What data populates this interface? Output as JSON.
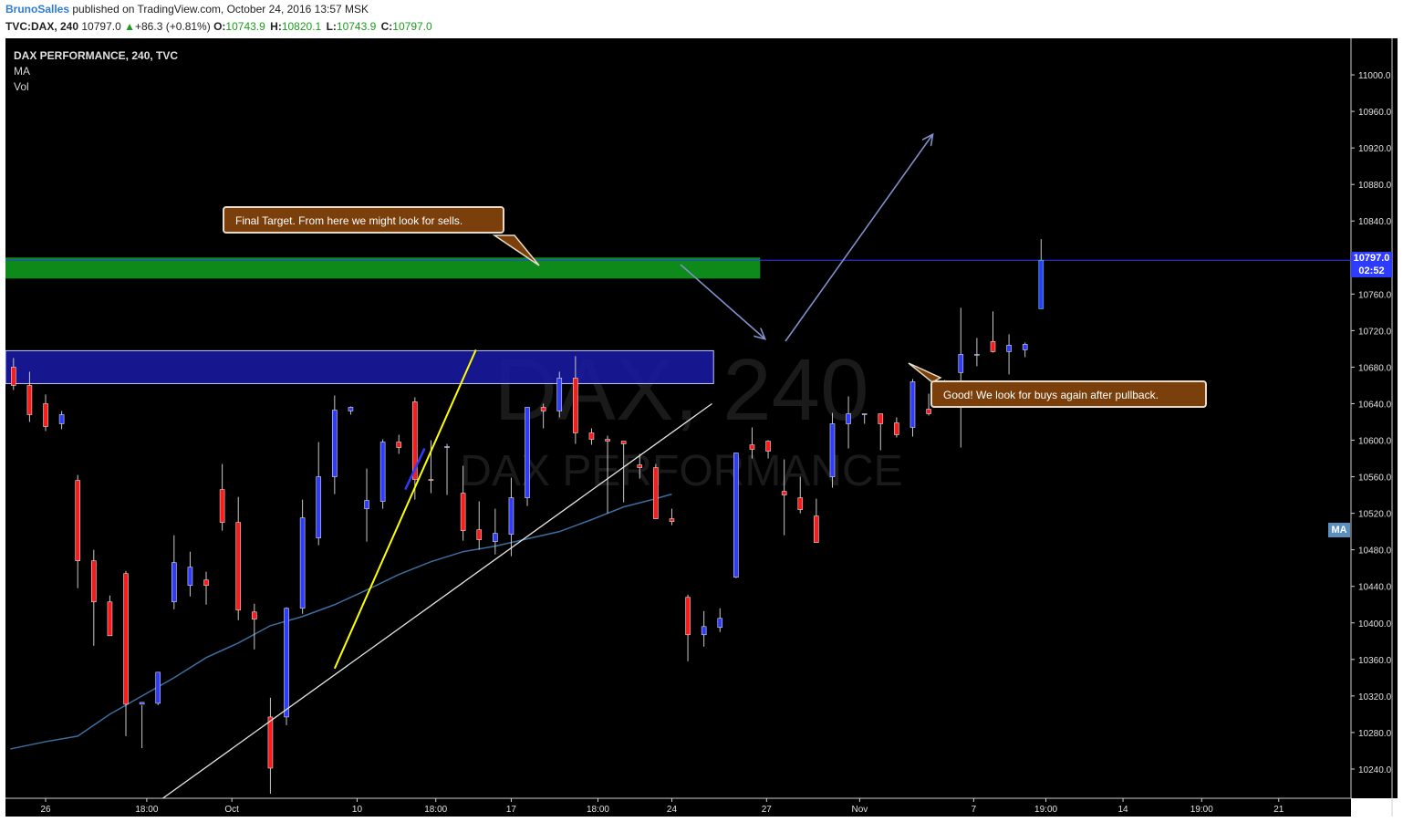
{
  "header": {
    "author": "BrunoSalles",
    "published_text": " published on TradingView.com, October 24, 2016 13:57 MSK",
    "symbol": "TVC:DAX, 240",
    "last": "10797.0",
    "change": "+86.3 (+0.81%)",
    "open_label": "O:",
    "open": "10743.9",
    "high_label": "H:",
    "high": "10820.1",
    "low_label": "L:",
    "low": "10743.9",
    "close_label": "C:",
    "close": "10797.0"
  },
  "legend": {
    "title": "DAX PERFORMANCE, 240, TVC",
    "indicator_1": "MA",
    "indicator_2": "Vol"
  },
  "watermark": {
    "line1": "DAX, 240",
    "line2": "DAX PERFORMANCE"
  },
  "annotations": {
    "callout_top": "Final Target. From here we might look for sells.",
    "callout_bottom": "Good! We look for buys again after pullback."
  },
  "price_tags": {
    "last_price": "10797.0",
    "countdown": "02:52",
    "ma": "MA"
  },
  "colors": {
    "background": "#000000",
    "up_candle": "#2e3cff",
    "down_candle": "#ff1a1a",
    "ma_line": "#3b6e9e",
    "resistance_zone": "#0e8a1a",
    "support_zone": "#1a1aa8",
    "trendline_yellow": "#ffff00",
    "trendline_white": "#e8e8e8",
    "arrow": "#8090c8"
  },
  "chart_data": {
    "type": "candlestick",
    "title": "DAX PERFORMANCE, 240, TVC",
    "y_ticks": [
      11000,
      10960,
      10920,
      10880,
      10840,
      10760,
      10720,
      10680,
      10640,
      10600,
      10560,
      10520,
      10480,
      10440,
      10400,
      10360,
      10320,
      10280,
      10240
    ],
    "ylim": [
      10208,
      11040
    ],
    "x_ticks": [
      {
        "label": "26",
        "i": 2
      },
      {
        "label": "18:00",
        "i": 8.3
      },
      {
        "label": "Oct",
        "i": 13.6
      },
      {
        "label": "10",
        "i": 21.4
      },
      {
        "label": "18:00",
        "i": 26.3
      },
      {
        "label": "17",
        "i": 31
      },
      {
        "label": "18:00",
        "i": 36.4
      },
      {
        "label": "24",
        "i": 41
      },
      {
        "label": "27",
        "i": 46.9
      },
      {
        "label": "Nov",
        "i": 52.7
      },
      {
        "label": "7",
        "i": 59.8
      },
      {
        "label": "19:00",
        "i": 64.3
      },
      {
        "label": "14",
        "i": 69.1
      },
      {
        "label": "19:00",
        "i": 74
      },
      {
        "label": "21",
        "i": 78.8
      }
    ],
    "x_range": [
      -0.5,
      83.3
    ],
    "candles": [
      {
        "o": 10680,
        "h": 10690,
        "l": 10655,
        "c": 10660
      },
      {
        "o": 10660,
        "h": 10675,
        "l": 10620,
        "c": 10628
      },
      {
        "o": 10640,
        "h": 10650,
        "l": 10610,
        "c": 10615
      },
      {
        "o": 10618,
        "h": 10632,
        "l": 10612,
        "c": 10628
      },
      {
        "o": 10556,
        "h": 10562,
        "l": 10438,
        "c": 10468
      },
      {
        "o": 10468,
        "h": 10480,
        "l": 10375,
        "c": 10423
      },
      {
        "o": 10423,
        "h": 10430,
        "l": 10386,
        "c": 10386
      },
      {
        "o": 10454,
        "h": 10457,
        "l": 10276,
        "c": 10311
      },
      {
        "o": 10311,
        "h": 10310,
        "l": 10263,
        "c": 10313
      },
      {
        "o": 10312,
        "h": 10346,
        "l": 10310,
        "c": 10346
      },
      {
        "o": 10423,
        "h": 10496,
        "l": 10415,
        "c": 10466
      },
      {
        "o": 10441,
        "h": 10478,
        "l": 10429,
        "c": 10461
      },
      {
        "o": 10447,
        "h": 10456,
        "l": 10420,
        "c": 10441
      },
      {
        "o": 10546,
        "h": 10574,
        "l": 10501,
        "c": 10510
      },
      {
        "o": 10510,
        "h": 10538,
        "l": 10403,
        "c": 10414
      },
      {
        "o": 10412,
        "h": 10421,
        "l": 10371,
        "c": 10404
      },
      {
        "o": 10297,
        "h": 10318,
        "l": 10213,
        "c": 10241
      },
      {
        "o": 10297,
        "h": 10417,
        "l": 10288,
        "c": 10416
      },
      {
        "o": 10416,
        "h": 10535,
        "l": 10410,
        "c": 10515
      },
      {
        "o": 10493,
        "h": 10598,
        "l": 10485,
        "c": 10560
      },
      {
        "o": 10560,
        "h": 10649,
        "l": 10541,
        "c": 10633
      },
      {
        "o": 10632,
        "h": 10637,
        "l": 10628,
        "c": 10636
      },
      {
        "o": 10525,
        "h": 10569,
        "l": 10489,
        "c": 10534
      },
      {
        "o": 10533,
        "h": 10601,
        "l": 10525,
        "c": 10598
      },
      {
        "o": 10598,
        "h": 10606,
        "l": 10585,
        "c": 10592
      },
      {
        "o": 10642,
        "h": 10647,
        "l": 10535,
        "c": 10557
      },
      {
        "o": 10557,
        "h": 10600,
        "l": 10542,
        "c": 10556
      },
      {
        "o": 10593,
        "h": 10596,
        "l": 10540,
        "c": 10593
      },
      {
        "o": 10542,
        "h": 10572,
        "l": 10490,
        "c": 10501
      },
      {
        "o": 10502,
        "h": 10533,
        "l": 10480,
        "c": 10491
      },
      {
        "o": 10489,
        "h": 10525,
        "l": 10475,
        "c": 10498
      },
      {
        "o": 10497,
        "h": 10559,
        "l": 10473,
        "c": 10537
      },
      {
        "o": 10537,
        "h": 10636,
        "l": 10528,
        "c": 10636
      },
      {
        "o": 10636,
        "h": 10640,
        "l": 10613,
        "c": 10632
      },
      {
        "o": 10632,
        "h": 10675,
        "l": 10625,
        "c": 10668
      },
      {
        "o": 10668,
        "h": 10692,
        "l": 10596,
        "c": 10608
      },
      {
        "o": 10608,
        "h": 10613,
        "l": 10595,
        "c": 10601
      },
      {
        "o": 10601,
        "h": 10605,
        "l": 10520,
        "c": 10599
      },
      {
        "o": 10599,
        "h": 10596,
        "l": 10532,
        "c": 10596
      },
      {
        "o": 10573,
        "h": 10585,
        "l": 10558,
        "c": 10570
      },
      {
        "o": 10570,
        "h": 10574,
        "l": 10515,
        "c": 10514
      },
      {
        "o": 10514,
        "h": 10525,
        "l": 10507,
        "c": 10511
      },
      {
        "o": 10428,
        "h": 10431,
        "l": 10358,
        "c": 10387
      },
      {
        "o": 10387,
        "h": 10413,
        "l": 10374,
        "c": 10396
      },
      {
        "o": 10395,
        "h": 10416,
        "l": 10390,
        "c": 10405
      },
      {
        "o": 10450,
        "h": 10586,
        "l": 10449,
        "c": 10586
      },
      {
        "o": 10595,
        "h": 10614,
        "l": 10580,
        "c": 10590
      },
      {
        "o": 10599,
        "h": 10600,
        "l": 10580,
        "c": 10588
      },
      {
        "o": 10544,
        "h": 10579,
        "l": 10496,
        "c": 10540
      },
      {
        "o": 10537,
        "h": 10560,
        "l": 10520,
        "c": 10524
      },
      {
        "o": 10517,
        "h": 10536,
        "l": 10489,
        "c": 10488
      },
      {
        "o": 10560,
        "h": 10630,
        "l": 10548,
        "c": 10618
      },
      {
        "o": 10618,
        "h": 10648,
        "l": 10591,
        "c": 10629
      },
      {
        "o": 10629,
        "h": 10628,
        "l": 10618,
        "c": 10629
      },
      {
        "o": 10629,
        "h": 10627,
        "l": 10589,
        "c": 10618
      },
      {
        "o": 10619,
        "h": 10625,
        "l": 10603,
        "c": 10606
      },
      {
        "o": 10614,
        "h": 10667,
        "l": 10604,
        "c": 10664
      },
      {
        "o": 10634,
        "h": 10651,
        "l": 10627,
        "c": 10629
      },
      {
        "o": 10662,
        "h": 10666,
        "l": 10658,
        "c": 10662
      },
      {
        "o": 10674,
        "h": 10745,
        "l": 10592,
        "c": 10694
      },
      {
        "o": 10694,
        "h": 10712,
        "l": 10681,
        "c": 10694
      },
      {
        "o": 10708,
        "h": 10741,
        "l": 10696,
        "c": 10697
      },
      {
        "o": 10697,
        "h": 10716,
        "l": 10672,
        "c": 10704
      },
      {
        "o": 10699,
        "h": 10707,
        "l": 10691,
        "c": 10705
      },
      {
        "o": 10743.9,
        "h": 10820.1,
        "l": 10743.9,
        "c": 10797
      }
    ],
    "ma_series": [
      [
        -0.2,
        10262
      ],
      [
        2,
        10270
      ],
      [
        4,
        10276
      ],
      [
        6,
        10300
      ],
      [
        8,
        10320
      ],
      [
        10,
        10340
      ],
      [
        12,
        10362
      ],
      [
        14,
        10378
      ],
      [
        16,
        10397
      ],
      [
        18,
        10407
      ],
      [
        20,
        10420
      ],
      [
        22,
        10436
      ],
      [
        24,
        10453
      ],
      [
        26,
        10467
      ],
      [
        28,
        10478
      ],
      [
        30,
        10484
      ],
      [
        32,
        10492
      ],
      [
        34,
        10500
      ],
      [
        36,
        10513
      ],
      [
        38,
        10527
      ],
      [
        40,
        10536
      ],
      [
        41,
        10541
      ]
    ],
    "zones": [
      {
        "name": "resistance",
        "y_from": 10777,
        "y_to": 10800,
        "x_from": -0.5,
        "x_to": 46.5
      },
      {
        "name": "support",
        "y_from": 10662,
        "y_to": 10698,
        "x_from": -0.5,
        "x_to": 43.6
      }
    ],
    "trendlines": [
      {
        "name": "white",
        "from": [
          9.3,
          10208
        ],
        "to": [
          43.5,
          10640
        ]
      },
      {
        "name": "yellow",
        "from": [
          20,
          10350
        ],
        "to": [
          28.8,
          10699
        ]
      },
      {
        "name": "blue",
        "from": [
          24.4,
          10546
        ],
        "to": [
          25.6,
          10591
        ]
      }
    ],
    "horizontal_line": 10797
  }
}
